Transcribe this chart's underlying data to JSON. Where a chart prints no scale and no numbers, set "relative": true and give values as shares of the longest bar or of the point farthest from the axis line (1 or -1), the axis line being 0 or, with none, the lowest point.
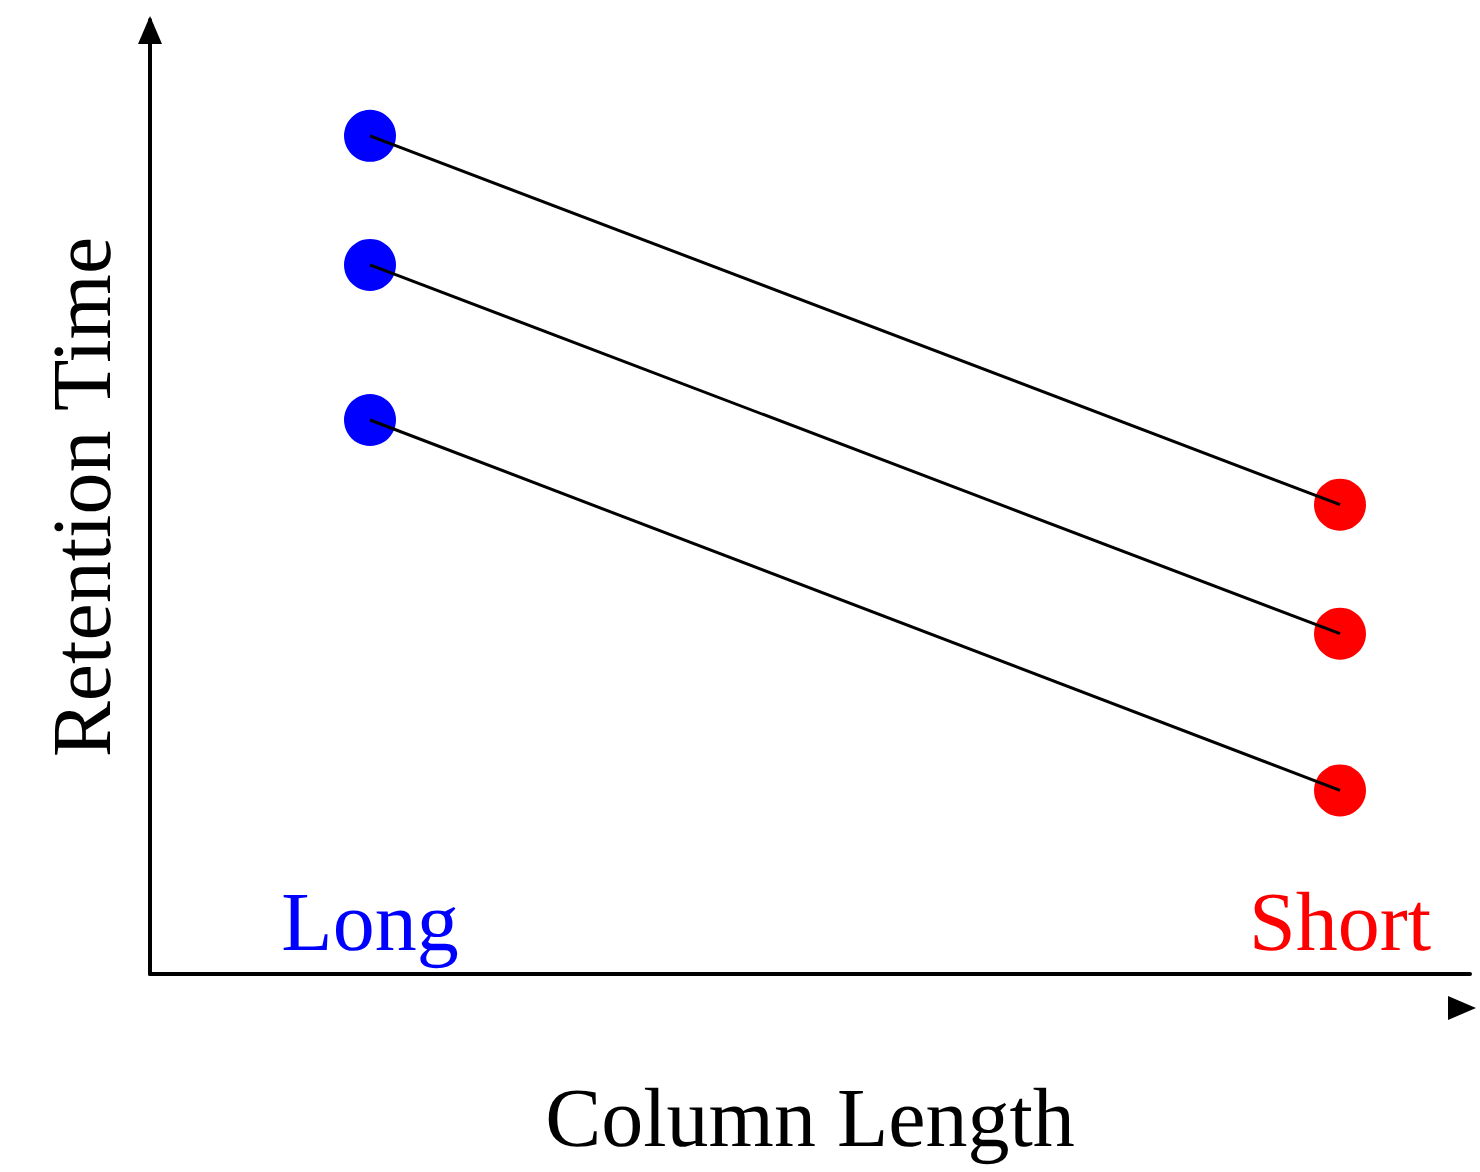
{
  "chart_data": {
    "type": "line",
    "xlabel": "Column Length",
    "ylabel": "Retention Time",
    "categories": [
      "Long",
      "Short"
    ],
    "relative": true,
    "marker": "circle",
    "grid": false,
    "series": [
      {
        "color": "#000000",
        "colors": [
          "#0000ff",
          "#ff0000"
        ],
        "values": [
          1,
          0.56
        ]
      },
      {
        "color": "#000000",
        "colors": [
          "#0000ff",
          "#ff0000"
        ],
        "values": [
          0.846,
          0.406
        ]
      },
      {
        "color": "#000000",
        "colors": [
          "#0000ff",
          "#ff0000"
        ],
        "values": [
          0.661,
          0.219
        ]
      }
    ]
  }
}
